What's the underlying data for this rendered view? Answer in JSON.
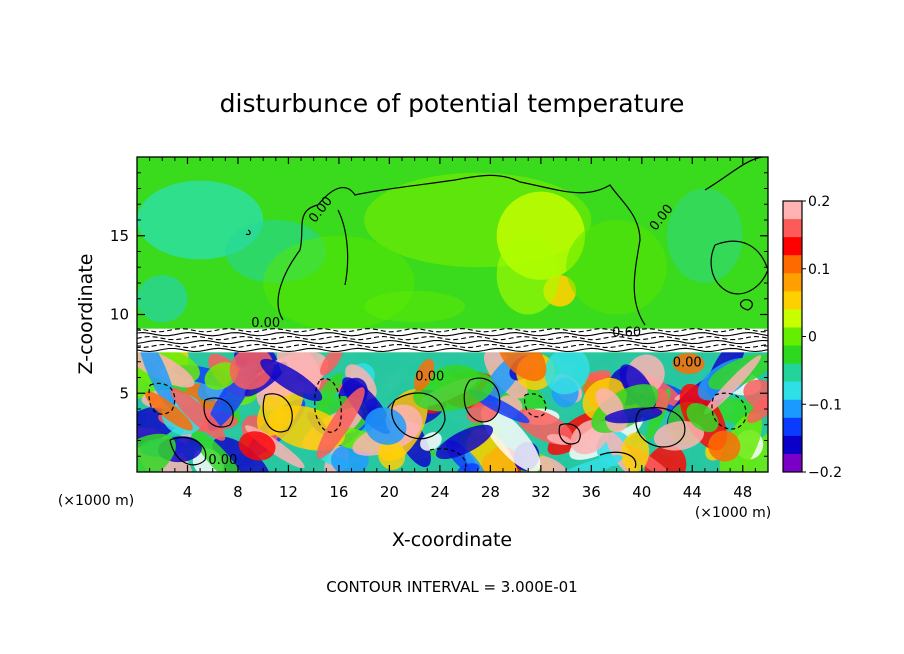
{
  "chart_data": {
    "type": "heatmap",
    "title": "disturbunce of potential temperature",
    "xlabel": "X-coordinate",
    "ylabel": "Z-coordinate",
    "x_unit": "(×1000 m)",
    "z_unit": "(×1000 m)",
    "xlim": [
      0,
      50
    ],
    "ylim": [
      0,
      20
    ],
    "x_ticks": [
      "4",
      "8",
      "12",
      "16",
      "20",
      "24",
      "28",
      "32",
      "36",
      "40",
      "44",
      "48"
    ],
    "y_ticks": [
      "5",
      "10",
      "15"
    ],
    "colorbar": {
      "range": [
        -0.2,
        0.2
      ],
      "tick_labels": [
        "0.2",
        "0.1",
        "0",
        "−0.1",
        "−0.2"
      ],
      "colors": [
        "#ffb3b3",
        "#ff5a5a",
        "#ff0000",
        "#ff6a00",
        "#ff9f00",
        "#ffd000",
        "#c8ff00",
        "#66ee00",
        "#2ed81e",
        "#22d39a",
        "#2ee0e6",
        "#1a9aff",
        "#0a3bff",
        "#0b00c8",
        "#7a00c8"
      ]
    },
    "contour_labels": [
      {
        "text": "0.00",
        "x": 14.8,
        "z": 16.5
      },
      {
        "text": "0.00",
        "x": 41.8,
        "z": 16.0
      },
      {
        "text": "0.00",
        "x": 10.2,
        "z": 9.2
      },
      {
        "text": "0.60",
        "x": 38.8,
        "z": 8.6
      },
      {
        "text": "0.00",
        "x": 23.2,
        "z": 5.8
      },
      {
        "text": "0.00",
        "x": 43.6,
        "z": 6.7
      },
      {
        "text": "0.00",
        "x": 6.8,
        "z": 0.5
      }
    ],
    "footer": "CONTOUR INTERVAL = 3.000E-01"
  }
}
